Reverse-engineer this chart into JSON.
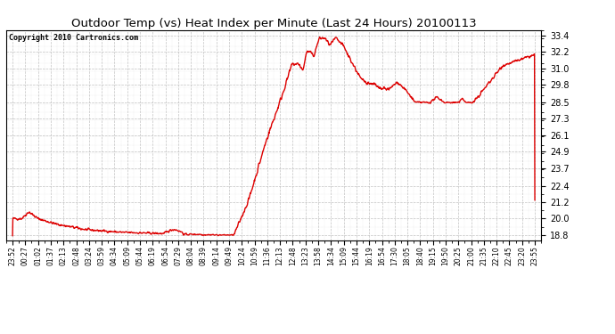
{
  "title": "Outdoor Temp (vs) Heat Index per Minute (Last 24 Hours) 20100113",
  "copyright": "Copyright 2010 Cartronics.com",
  "line_color": "#dd0000",
  "bg_color": "#ffffff",
  "plot_bg_color": "#ffffff",
  "grid_color": "#bbbbbb",
  "yticks": [
    18.8,
    20.0,
    21.2,
    22.4,
    23.7,
    24.9,
    26.1,
    27.3,
    28.5,
    29.8,
    31.0,
    32.2,
    33.4
  ],
  "ylim": [
    18.4,
    33.8
  ],
  "xtick_labels": [
    "23:52",
    "00:27",
    "01:02",
    "01:37",
    "02:13",
    "02:48",
    "03:24",
    "03:59",
    "04:34",
    "05:09",
    "05:44",
    "06:19",
    "06:54",
    "07:29",
    "08:04",
    "08:39",
    "09:14",
    "09:49",
    "10:24",
    "10:59",
    "11:36",
    "12:13",
    "12:48",
    "13:23",
    "13:58",
    "14:34",
    "15:09",
    "15:44",
    "16:19",
    "16:54",
    "17:30",
    "18:05",
    "18:40",
    "19:15",
    "19:50",
    "20:25",
    "21:00",
    "21:35",
    "22:10",
    "22:45",
    "23:20",
    "23:55"
  ],
  "line_width": 1.0
}
